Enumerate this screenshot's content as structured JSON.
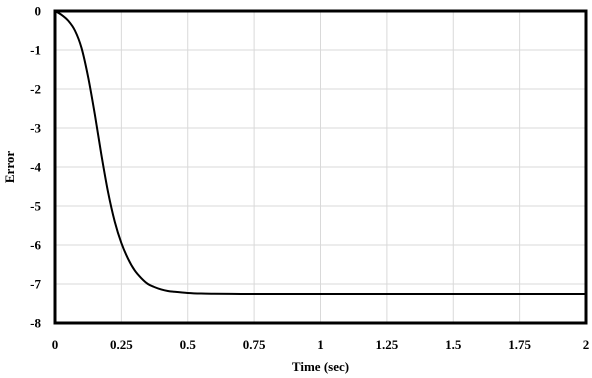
{
  "chart_data": {
    "type": "line",
    "title": "",
    "xlabel": "Time (sec)",
    "ylabel": "Error",
    "xlim": [
      0,
      2
    ],
    "ylim": [
      -8,
      0
    ],
    "x_ticks": [
      "0",
      "0.25",
      "0.5",
      "0.75",
      "1",
      "1.25",
      "1.5",
      "1.75",
      "2"
    ],
    "y_ticks": [
      "0",
      "-1",
      "-2",
      "-3",
      "-4",
      "-5",
      "-6",
      "-7",
      "-8"
    ],
    "grid": true,
    "legend": "none",
    "line_color": "#000000",
    "grid_color": "#d9d9d9",
    "series": [
      {
        "x": [
          0,
          0.025,
          0.05,
          0.075,
          0.1,
          0.125,
          0.15,
          0.175,
          0.2,
          0.225,
          0.25,
          0.275,
          0.3,
          0.325,
          0.35,
          0.375,
          0.4,
          0.425,
          0.45,
          0.5,
          0.55,
          0.6,
          0.7,
          0.8,
          1.0,
          1.25,
          1.5,
          1.75,
          2.0
        ],
        "y": [
          0,
          -0.1,
          -0.25,
          -0.5,
          -0.95,
          -1.7,
          -2.65,
          -3.7,
          -4.65,
          -5.4,
          -5.95,
          -6.35,
          -6.65,
          -6.85,
          -7.0,
          -7.08,
          -7.14,
          -7.18,
          -7.2,
          -7.23,
          -7.245,
          -7.25,
          -7.255,
          -7.255,
          -7.255,
          -7.255,
          -7.255,
          -7.255,
          -7.255
        ]
      }
    ]
  }
}
